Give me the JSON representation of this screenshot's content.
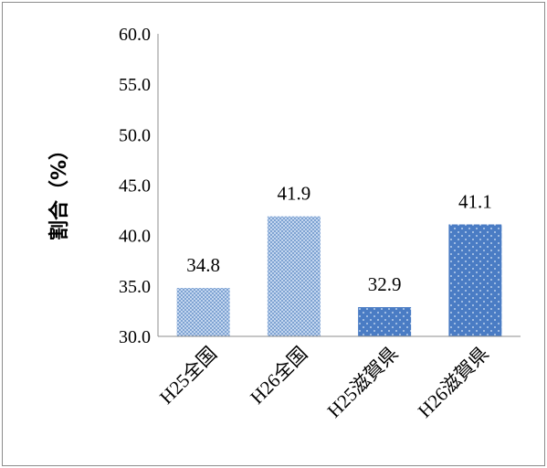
{
  "chart_data": {
    "type": "bar",
    "categories": [
      "H25全国",
      "H26全国",
      "H25滋賀県",
      "H26滋賀県"
    ],
    "values": [
      34.8,
      41.9,
      32.9,
      41.1
    ],
    "value_labels": [
      "34.8",
      "41.9",
      "32.9",
      "41.1"
    ],
    "ylabel": "割合（%）",
    "xlabel": "",
    "ylim": [
      30.0,
      60.0
    ],
    "yticks": [
      "30.0",
      "35.0",
      "40.0",
      "45.0",
      "50.0",
      "55.0",
      "60.0"
    ],
    "ytick_values": [
      30,
      35,
      40,
      45,
      50,
      55,
      60
    ],
    "grid": false,
    "legend": "none",
    "colors": {
      "national_fill": "#a9c4e6",
      "national_pattern": "#7fa3d2",
      "shiga_fill": "#4a7cc4",
      "shiga_dots": "#c9dcf2",
      "axis": "#8c8c8c"
    },
    "bar_patterns": [
      "checker",
      "checker",
      "dots",
      "dots"
    ]
  }
}
